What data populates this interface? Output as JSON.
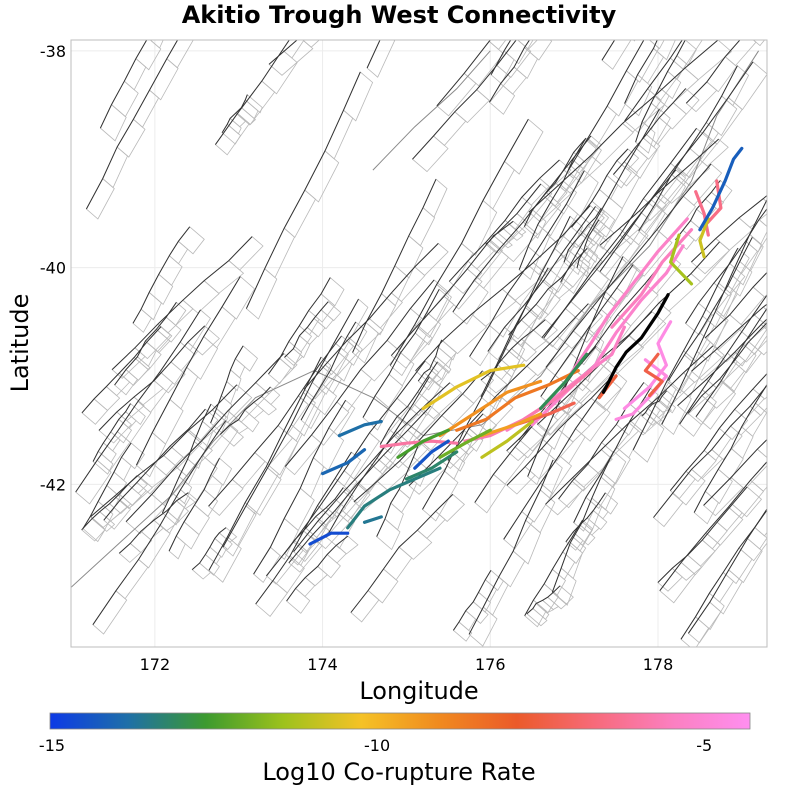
{
  "chart_data": {
    "type": "map",
    "title": "Akitio Trough West Connectivity",
    "xlabel": "Longitude",
    "ylabel": "Latitude",
    "xlim": [
      171.0,
      179.3
    ],
    "ylim": [
      -43.5,
      -37.9
    ],
    "xticks": [
      172,
      174,
      176,
      178
    ],
    "yticks": [
      -38,
      -40,
      -42
    ],
    "colorbar": {
      "label": "Log10 Co-rupture Rate",
      "range": [
        -15,
        -4.3
      ],
      "ticks": [
        -15,
        -10,
        -5
      ],
      "colors": [
        "#0d3ae6",
        "#1e6fa8",
        "#3c9a2f",
        "#9dc21c",
        "#f5c226",
        "#f08a1f",
        "#eb5a2a",
        "#f76a7a",
        "#fb7fc0",
        "#ff8ff0"
      ]
    },
    "target_fault": {
      "name": "Akitio Trough West",
      "color": "#000000",
      "points": [
        [
          177.35,
          -41.15
        ],
        [
          177.5,
          -40.92
        ],
        [
          177.62,
          -40.78
        ],
        [
          177.8,
          -40.65
        ],
        [
          178.0,
          -40.42
        ],
        [
          178.12,
          -40.25
        ]
      ]
    },
    "colored_faults": [
      {
        "log_rate": -4.6,
        "points": [
          [
            177.6,
            -41.3
          ],
          [
            177.9,
            -41.1
          ],
          [
            178.1,
            -40.9
          ],
          [
            178.0,
            -40.7
          ],
          [
            178.15,
            -40.5
          ]
        ]
      },
      {
        "log_rate": -4.7,
        "points": [
          [
            177.5,
            -41.4
          ],
          [
            177.7,
            -41.35
          ],
          [
            177.95,
            -41.15
          ],
          [
            178.1,
            -41.0
          ],
          [
            177.85,
            -40.85
          ]
        ]
      },
      {
        "log_rate": -5.2,
        "points": [
          [
            176.5,
            -41.45
          ],
          [
            176.9,
            -41.15
          ],
          [
            177.25,
            -40.9
          ],
          [
            177.5,
            -40.6
          ],
          [
            177.8,
            -40.3
          ],
          [
            178.1,
            -40.05
          ],
          [
            178.3,
            -39.8
          ]
        ]
      },
      {
        "log_rate": -5.3,
        "points": [
          [
            176.9,
            -41.05
          ],
          [
            177.2,
            -40.7
          ],
          [
            177.4,
            -40.45
          ],
          [
            177.7,
            -40.15
          ],
          [
            178.0,
            -39.85
          ],
          [
            178.35,
            -39.55
          ]
        ]
      },
      {
        "log_rate": -5.4,
        "points": [
          [
            176.2,
            -41.5
          ],
          [
            176.6,
            -41.3
          ],
          [
            177.1,
            -41.0
          ],
          [
            177.45,
            -40.8
          ],
          [
            177.6,
            -40.55
          ]
        ]
      },
      {
        "log_rate": -5.5,
        "points": [
          [
            177.45,
            -40.55
          ],
          [
            177.8,
            -40.25
          ],
          [
            178.05,
            -39.95
          ],
          [
            178.4,
            -39.65
          ]
        ]
      },
      {
        "log_rate": -5.8,
        "points": [
          [
            175.7,
            -41.6
          ],
          [
            176.0,
            -41.55
          ],
          [
            176.4,
            -41.4
          ],
          [
            176.8,
            -41.2
          ],
          [
            177.2,
            -40.95
          ]
        ]
      },
      {
        "log_rate": -6.0,
        "points": [
          [
            174.7,
            -41.65
          ],
          [
            175.0,
            -41.62
          ],
          [
            175.3,
            -41.6
          ],
          [
            175.6,
            -41.62
          ]
        ]
      },
      {
        "log_rate": -6.4,
        "points": [
          [
            178.45,
            -39.3
          ],
          [
            178.55,
            -39.5
          ],
          [
            178.6,
            -39.7
          ]
        ]
      },
      {
        "log_rate": -6.5,
        "points": [
          [
            178.7,
            -39.2
          ],
          [
            178.75,
            -39.45
          ],
          [
            178.55,
            -39.62
          ]
        ]
      },
      {
        "log_rate": -7.3,
        "points": [
          [
            176.3,
            -41.45
          ],
          [
            176.7,
            -41.35
          ],
          [
            177.0,
            -41.25
          ]
        ]
      },
      {
        "log_rate": -7.4,
        "points": [
          [
            177.9,
            -41.18
          ],
          [
            178.05,
            -41.05
          ],
          [
            177.85,
            -40.95
          ],
          [
            178.0,
            -40.8
          ]
        ]
      },
      {
        "log_rate": -7.6,
        "points": [
          [
            177.3,
            -41.2
          ],
          [
            177.5,
            -41.0
          ]
        ]
      },
      {
        "log_rate": -8.6,
        "points": [
          [
            175.6,
            -41.5
          ],
          [
            175.95,
            -41.4
          ],
          [
            176.3,
            -41.2
          ],
          [
            176.7,
            -41.08
          ],
          [
            177.05,
            -40.95
          ]
        ]
      },
      {
        "log_rate": -9.2,
        "points": [
          [
            175.4,
            -41.55
          ],
          [
            175.8,
            -41.35
          ],
          [
            176.2,
            -41.15
          ],
          [
            176.6,
            -41.05
          ]
        ]
      },
      {
        "log_rate": -9.5,
        "points": [
          [
            175.9,
            -41.55
          ],
          [
            176.3,
            -41.45
          ],
          [
            176.6,
            -41.35
          ]
        ]
      },
      {
        "log_rate": -10.5,
        "points": [
          [
            175.2,
            -41.3
          ],
          [
            175.6,
            -41.1
          ],
          [
            176.0,
            -40.95
          ],
          [
            176.4,
            -40.9
          ]
        ]
      },
      {
        "log_rate": -11.0,
        "points": [
          [
            175.9,
            -41.75
          ],
          [
            176.2,
            -41.6
          ],
          [
            176.5,
            -41.42
          ]
        ]
      },
      {
        "log_rate": -11.3,
        "points": [
          [
            178.4,
            -40.15
          ],
          [
            178.15,
            -39.95
          ],
          [
            178.25,
            -39.7
          ]
        ]
      },
      {
        "log_rate": -10.8,
        "points": [
          [
            178.55,
            -39.9
          ],
          [
            178.5,
            -39.75
          ],
          [
            178.6,
            -39.55
          ]
        ]
      },
      {
        "log_rate": -12.0,
        "points": [
          [
            175.4,
            -41.75
          ],
          [
            175.7,
            -41.62
          ],
          [
            176.0,
            -41.5
          ]
        ]
      },
      {
        "log_rate": -12.5,
        "points": [
          [
            174.9,
            -41.75
          ],
          [
            175.2,
            -41.6
          ],
          [
            175.5,
            -41.5
          ]
        ]
      },
      {
        "log_rate": -13.0,
        "points": [
          [
            176.6,
            -41.3
          ],
          [
            176.9,
            -41.05
          ],
          [
            177.15,
            -40.8
          ]
        ]
      },
      {
        "log_rate": -13.2,
        "points": [
          [
            175.0,
            -41.95
          ],
          [
            175.3,
            -41.85
          ],
          [
            175.6,
            -41.7
          ]
        ]
      },
      {
        "log_rate": -13.4,
        "points": [
          [
            174.3,
            -42.4
          ],
          [
            174.5,
            -42.2
          ],
          [
            174.8,
            -42.05
          ],
          [
            175.1,
            -41.95
          ],
          [
            175.4,
            -41.85
          ]
        ]
      },
      {
        "log_rate": -13.6,
        "points": [
          [
            174.5,
            -42.35
          ],
          [
            174.7,
            -42.3
          ]
        ]
      },
      {
        "log_rate": -13.8,
        "points": [
          [
            174.2,
            -41.55
          ],
          [
            174.5,
            -41.45
          ],
          [
            174.7,
            -41.42
          ]
        ]
      },
      {
        "log_rate": -14.0,
        "points": [
          [
            174.0,
            -41.9
          ],
          [
            174.3,
            -41.8
          ],
          [
            174.5,
            -41.68
          ]
        ]
      },
      {
        "log_rate": -14.2,
        "points": [
          [
            178.5,
            -39.65
          ],
          [
            178.65,
            -39.45
          ],
          [
            178.8,
            -39.2
          ],
          [
            178.9,
            -39.0
          ],
          [
            179.0,
            -38.9
          ]
        ]
      },
      {
        "log_rate": -14.6,
        "points": [
          [
            173.85,
            -42.55
          ],
          [
            174.1,
            -42.45
          ],
          [
            174.3,
            -42.45
          ]
        ]
      },
      {
        "log_rate": -14.4,
        "points": [
          [
            175.1,
            -41.85
          ],
          [
            175.3,
            -41.7
          ],
          [
            175.5,
            -41.6
          ]
        ]
      }
    ]
  }
}
